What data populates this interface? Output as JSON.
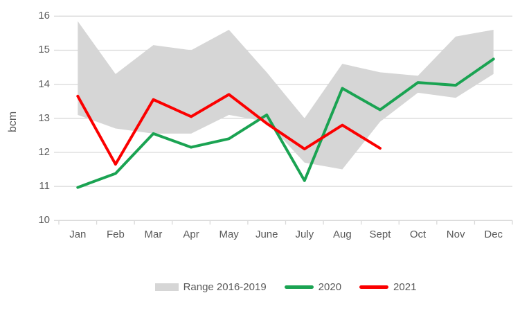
{
  "colors": {
    "band": "#D6D6D6",
    "line_2020": "#1AA352",
    "line_2021": "#FB0000",
    "grid": "#D9D9D9",
    "axis": "#D9D9D9",
    "text": "#595959",
    "background": "#FFFFFF"
  },
  "chart_data": {
    "type": "line",
    "title": "",
    "xlabel": "",
    "ylabel": "bcm",
    "ylim": [
      10,
      16
    ],
    "ytick_step": 1,
    "ytick_labels": [
      "10",
      "11",
      "12",
      "13",
      "14",
      "15",
      "16"
    ],
    "grid": true,
    "legend_position": "bottom",
    "categories": [
      "Jan",
      "Feb",
      "Mar",
      "Apr",
      "May",
      "June",
      "July",
      "Aug",
      "Sept",
      "Oct",
      "Nov",
      "Dec"
    ],
    "series": [
      {
        "name": "Range 2016-2019",
        "type": "band",
        "color": "#D6D6D6",
        "upper": [
          15.85,
          14.3,
          15.15,
          15.0,
          15.6,
          14.35,
          13.0,
          14.6,
          14.35,
          14.25,
          15.4,
          15.6
        ],
        "lower": [
          13.1,
          12.7,
          12.55,
          12.55,
          13.1,
          12.9,
          11.7,
          11.5,
          12.9,
          13.75,
          13.6,
          14.3
        ]
      },
      {
        "name": "2020",
        "type": "line",
        "color": "#1AA352",
        "values": [
          10.97,
          11.38,
          12.55,
          12.15,
          12.4,
          13.1,
          11.17,
          13.88,
          13.25,
          14.05,
          13.97,
          14.74
        ]
      },
      {
        "name": "2021",
        "type": "line",
        "color": "#FB0000",
        "values": [
          13.65,
          11.65,
          13.55,
          13.05,
          13.7,
          12.85,
          12.1,
          12.8,
          12.12,
          null,
          null,
          null
        ]
      }
    ]
  }
}
